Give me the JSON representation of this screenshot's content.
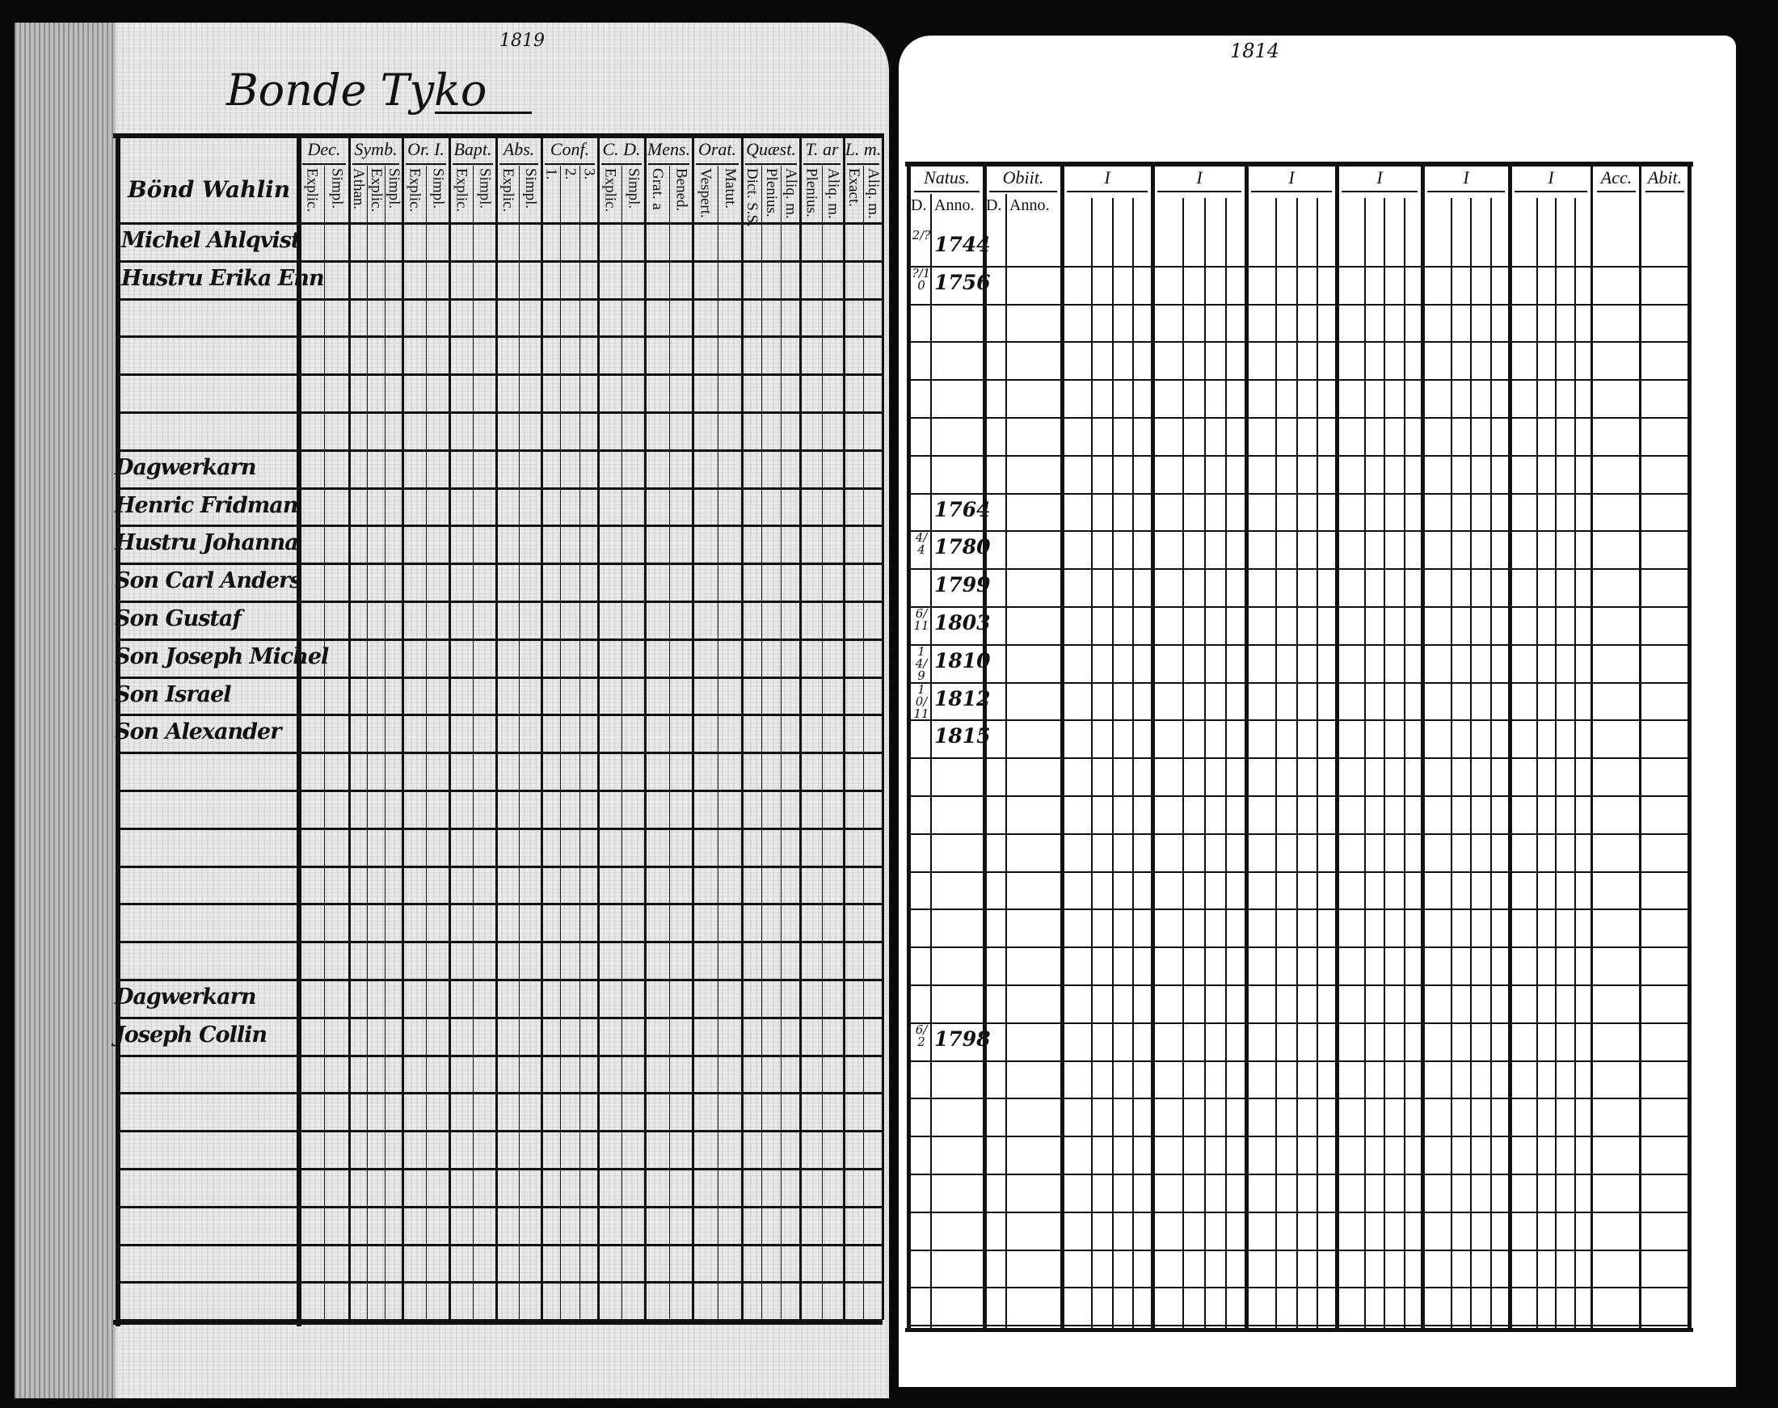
{
  "left_page": {
    "title": "Bonde Tyko",
    "page_number": "1819",
    "name_column_header": "Bönd Wahlin",
    "columns": [
      {
        "label": "Dec.",
        "sub": [
          "Explic.",
          "Simpl."
        ]
      },
      {
        "label": "Symb.",
        "sub": [
          "Athan.",
          "Explic.",
          "Simpl."
        ]
      },
      {
        "label": "Or. I.",
        "sub": [
          "Explic.",
          "Simpl."
        ]
      },
      {
        "label": "Bapt.",
        "sub": [
          "Explic.",
          "Simpl."
        ]
      },
      {
        "label": "Abs.",
        "sub": [
          "Explic.",
          "Simpl."
        ]
      },
      {
        "label": "Conf.",
        "sub": [
          "1.",
          "2.",
          "3."
        ]
      },
      {
        "label": "C. D.",
        "sub": [
          "Explic.",
          "Simpl."
        ]
      },
      {
        "label": "Mens.",
        "sub": [
          "Grat. a",
          "Bened."
        ]
      },
      {
        "label": "Orat.",
        "sub": [
          "Vespert.",
          "Matut."
        ]
      },
      {
        "label": "Quæst.",
        "sub": [
          "Dict. S.S.",
          "Plenius.",
          "Aliq. m."
        ]
      },
      {
        "label": "T. ar",
        "sub": [
          "Plenius.",
          "Aliq. m."
        ]
      },
      {
        "label": "L. m.",
        "sub": [
          "Exact.",
          "Aliq. m."
        ]
      }
    ]
  },
  "right_page": {
    "page_number": "1814",
    "columns": [
      {
        "label": "Natus.",
        "sub": [
          "D.",
          "Anno."
        ]
      },
      {
        "label": "Obiit.",
        "sub": [
          "D.",
          "Anno."
        ]
      },
      {
        "label": "I"
      },
      {
        "label": "I"
      },
      {
        "label": "I"
      },
      {
        "label": "I"
      },
      {
        "label": "I"
      },
      {
        "label": "I"
      },
      {
        "label": "Acc."
      },
      {
        "label": "Abit."
      }
    ]
  },
  "rows": [
    {
      "name": "Michel Ahlqvist",
      "day": "2/?",
      "year": "1744"
    },
    {
      "name": "Hustru Erika Enn",
      "day": "?/10",
      "year": "1756"
    },
    {
      "name": ""
    },
    {
      "name": ""
    },
    {
      "name": ""
    },
    {
      "name": ""
    },
    {
      "name": "Dagwerkarn"
    },
    {
      "name": "Henric Fridman",
      "year": "1764"
    },
    {
      "name": "Hustru Johanna",
      "day": "4/4",
      "year": "1780"
    },
    {
      "name": "Son Carl Anders",
      "year": "1799"
    },
    {
      "name": "Son Gustaf",
      "day": "6/11",
      "year": "1803"
    },
    {
      "name": "Son Joseph Michel",
      "day": "14/9",
      "year": "1810"
    },
    {
      "name": "Son Israel",
      "day": "10/11",
      "year": "1812"
    },
    {
      "name": "Son Alexander",
      "year": "1815"
    },
    {
      "name": ""
    },
    {
      "name": ""
    },
    {
      "name": ""
    },
    {
      "name": ""
    },
    {
      "name": ""
    },
    {
      "name": ""
    },
    {
      "name": "Dagwerkarn"
    },
    {
      "name": "Joseph Collin",
      "day": "6/2",
      "year": "1798"
    },
    {
      "name": ""
    },
    {
      "name": ""
    },
    {
      "name": ""
    },
    {
      "name": ""
    },
    {
      "name": ""
    },
    {
      "name": ""
    },
    {
      "name": ""
    }
  ]
}
